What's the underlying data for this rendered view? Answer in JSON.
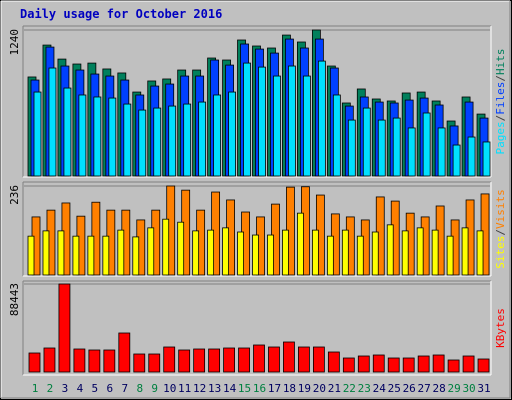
{
  "title": "Daily usage for October 2016",
  "legend_separator": "/",
  "chart_data": [
    {
      "type": "bar",
      "ylim": [
        0,
        1240
      ],
      "yticks": [
        1240
      ],
      "grid": true,
      "series": [
        {
          "name": "Hits",
          "color": "#00805c",
          "values": [
            841,
            1112,
            993,
            951,
            959,
            909,
            875,
            713,
            807,
            824,
            900,
            900,
            1002,
            985,
            1155,
            1104,
            1087,
            1197,
            1138,
            1240,
            934,
            620,
            739,
            654,
            637,
            705,
            713,
            637,
            467,
            671,
            526
          ]
        },
        {
          "name": "Files",
          "color": "#0040ff",
          "values": [
            815,
            1095,
            934,
            900,
            866,
            849,
            815,
            688,
            764,
            781,
            849,
            849,
            985,
            942,
            1121,
            1078,
            1044,
            1163,
            1087,
            1163,
            917,
            594,
            671,
            628,
            620,
            645,
            662,
            603,
            425,
            628,
            492
          ]
        },
        {
          "name": "Pages",
          "color": "#00e0ff",
          "values": [
            713,
            917,
            747,
            688,
            671,
            662,
            611,
            560,
            577,
            594,
            611,
            628,
            688,
            713,
            959,
            925,
            849,
            934,
            849,
            976,
            688,
            475,
            577,
            475,
            492,
            408,
            535,
            408,
            263,
            331,
            289
          ]
        }
      ]
    },
    {
      "type": "bar",
      "ylim": [
        0,
        236
      ],
      "yticks": [
        236
      ],
      "grid": true,
      "series": [
        {
          "name": "Visits",
          "color": "#ff8000",
          "values": [
            154,
            172,
            191,
            156,
            193,
            172,
            172,
            146,
            172,
            236,
            225,
            172,
            220,
            199,
            167,
            154,
            188,
            233,
            234,
            212,
            162,
            154,
            146,
            207,
            196,
            164,
            154,
            183,
            146,
            199,
            215
          ]
        },
        {
          "name": "Sites",
          "color": "#ffff00",
          "values": [
            103,
            117,
            117,
            103,
            103,
            103,
            119,
            101,
            125,
            148,
            140,
            117,
            119,
            125,
            114,
            106,
            106,
            119,
            164,
            119,
            103,
            119,
            103,
            114,
            133,
            117,
            125,
            119,
            103,
            125,
            117
          ]
        }
      ]
    },
    {
      "type": "bar",
      "ylim": [
        0,
        88443
      ],
      "yticks": [
        88443
      ],
      "grid": true,
      "categories": [
        "1",
        "2",
        "3",
        "4",
        "5",
        "6",
        "7",
        "8",
        "9",
        "10",
        "11",
        "12",
        "13",
        "14",
        "15",
        "16",
        "17",
        "18",
        "19",
        "20",
        "21",
        "22",
        "23",
        "24",
        "25",
        "26",
        "27",
        "28",
        "29",
        "30",
        "31"
      ],
      "label_colors": [
        "#008040",
        "#008040",
        "#000060",
        "#000060",
        "#000060",
        "#000060",
        "#000060",
        "#008040",
        "#008040",
        "#000060",
        "#000060",
        "#000060",
        "#000060",
        "#000060",
        "#008040",
        "#008040",
        "#000060",
        "#000060",
        "#000060",
        "#000060",
        "#000060",
        "#008040",
        "#008040",
        "#000060",
        "#000060",
        "#000060",
        "#000060",
        "#000060",
        "#008040",
        "#008040",
        "#000060"
      ],
      "series": [
        {
          "name": "KBytes",
          "color": "#ff0000",
          "values": [
            19095,
            24120,
            88443,
            23115,
            22110,
            22110,
            39195,
            18090,
            18090,
            25125,
            22110,
            23115,
            23115,
            24120,
            24120,
            27135,
            25125,
            30150,
            25125,
            25125,
            20100,
            14070,
            16080,
            17085,
            14070,
            14070,
            16080,
            17085,
            12060,
            16080,
            13065
          ]
        }
      ]
    }
  ]
}
